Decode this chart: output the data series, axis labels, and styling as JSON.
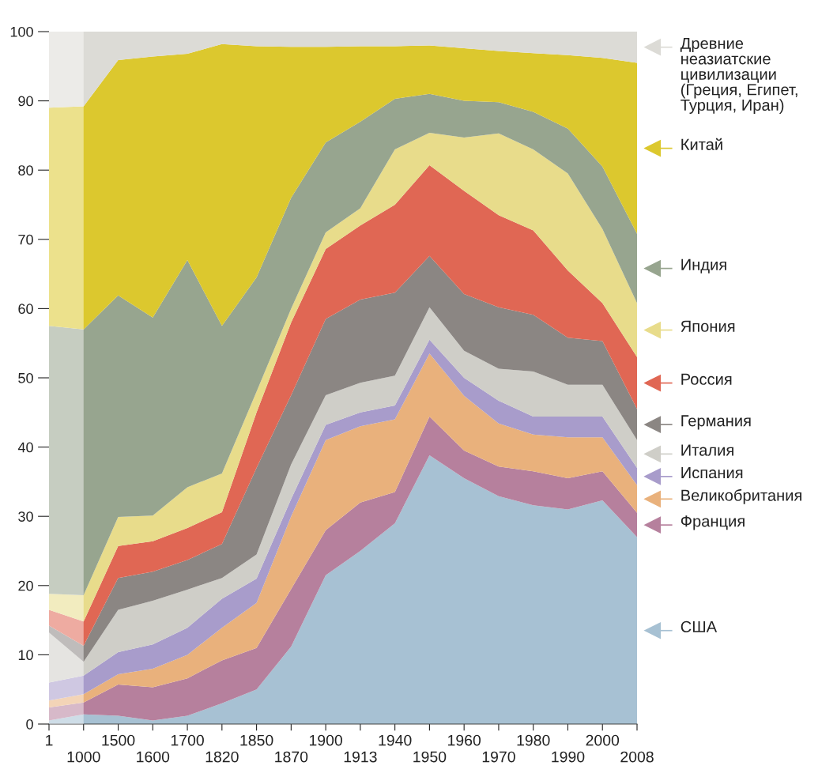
{
  "chart_data": {
    "type": "area",
    "stacked": true,
    "legend": "right",
    "categories": [
      "1",
      "1000",
      "1500",
      "1600",
      "1700",
      "1820",
      "1850",
      "1870",
      "1900",
      "1913",
      "1940",
      "1950",
      "1960",
      "1970",
      "1980",
      "1990",
      "2000",
      "2008"
    ],
    "ylim": [
      0,
      100
    ],
    "yticks": [
      0,
      10,
      20,
      30,
      40,
      50,
      60,
      70,
      80,
      90,
      100
    ],
    "bands": [
      {
        "axis": "x",
        "from": "1",
        "to": "1000",
        "color": "#ffffff"
      }
    ],
    "series": [
      {
        "name": "США",
        "color": "#a7c1d3",
        "values": [
          0.5,
          1.4,
          1.2,
          0.5,
          1.2,
          3.0,
          5.0,
          11.2,
          21.5,
          25.0,
          29.0,
          38.8,
          35.5,
          32.9,
          31.6,
          31.0,
          32.3,
          27.0
        ]
      },
      {
        "name": "Франция",
        "color": "#b6809d",
        "values": [
          1.9,
          1.7,
          4.5,
          4.8,
          5.4,
          6.2,
          6.0,
          8.3,
          6.5,
          7.0,
          4.5,
          5.6,
          4.0,
          4.3,
          4.9,
          4.5,
          4.2,
          3.5
        ]
      },
      {
        "name": "Великобритания",
        "color": "#e9b17c",
        "values": [
          1.0,
          1.2,
          1.5,
          2.7,
          3.4,
          4.7,
          6.5,
          10.5,
          13.0,
          11.0,
          10.5,
          9.1,
          7.9,
          6.2,
          5.3,
          5.9,
          4.9,
          4.0
        ]
      },
      {
        "name": "Испания",
        "color": "#a89ccb",
        "values": [
          2.6,
          2.7,
          3.2,
          3.5,
          3.9,
          4.2,
          3.5,
          2.5,
          2.2,
          2.0,
          2.0,
          2.0,
          2.6,
          3.3,
          2.6,
          3.0,
          3.0,
          2.5
        ]
      },
      {
        "name": "Италия",
        "color": "#cfcec8",
        "values": [
          7.2,
          2.0,
          6.1,
          6.3,
          5.5,
          3.0,
          3.5,
          5.0,
          4.3,
          4.3,
          4.3,
          4.7,
          3.9,
          4.6,
          6.5,
          4.6,
          4.6,
          4.0
        ]
      },
      {
        "name": "Германия",
        "color": "#8b8683",
        "values": [
          1.0,
          2.3,
          4.6,
          4.2,
          4.3,
          4.9,
          12.5,
          10.0,
          11.0,
          12.0,
          12.0,
          7.4,
          8.2,
          8.9,
          8.2,
          6.8,
          6.3,
          4.5
        ]
      },
      {
        "name": "Россия",
        "color": "#e06754",
        "values": [
          2.3,
          3.5,
          4.6,
          4.4,
          4.6,
          4.6,
          8.0,
          10.5,
          10.1,
          10.7,
          12.7,
          13.1,
          14.9,
          13.3,
          12.2,
          9.7,
          5.5,
          7.5
        ]
      },
      {
        "name": "Япония",
        "color": "#e8dc8b",
        "values": [
          2.3,
          3.8,
          4.2,
          3.7,
          5.9,
          5.6,
          3.0,
          2.0,
          2.4,
          2.5,
          8.0,
          4.7,
          7.7,
          11.8,
          11.7,
          14.0,
          10.7,
          7.8
        ]
      },
      {
        "name": "Индия",
        "color": "#97a58f",
        "values": [
          38.7,
          38.4,
          32.0,
          28.6,
          32.8,
          21.3,
          16.5,
          16.0,
          13.0,
          12.5,
          7.3,
          5.6,
          5.3,
          4.5,
          5.4,
          6.5,
          9.0,
          10.0
        ]
      },
      {
        "name": "Китай",
        "color": "#dcc82e",
        "values": [
          31.5,
          32.2,
          34.0,
          37.7,
          29.8,
          40.7,
          33.4,
          21.8,
          13.8,
          10.9,
          7.6,
          7.0,
          7.6,
          7.4,
          8.5,
          10.6,
          15.7,
          24.7
        ]
      },
      {
        "name": "Древние неазиатские цивилизации (Греция, Египет, Турция, Иран)",
        "color": "#dcdbd6",
        "values": [
          11.0,
          10.8,
          4.1,
          3.6,
          3.2,
          1.8,
          2.1,
          2.2,
          2.2,
          2.1,
          2.1,
          2.0,
          2.4,
          2.8,
          3.1,
          3.4,
          3.8,
          4.5
        ]
      }
    ]
  }
}
